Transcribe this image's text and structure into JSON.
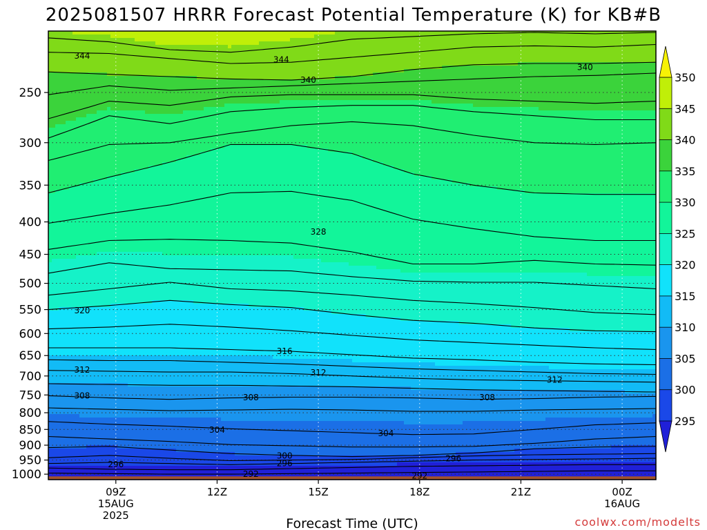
{
  "chart_data": {
    "type": "heatmap",
    "title": "2025081507 HRRR Forecast Potential Temperature (K) for KB#B",
    "xlabel": "Forecast Time (UTC)",
    "ylabel": "",
    "x_ticks": [
      {
        "lines": [
          "09Z",
          "15AUG",
          "2025"
        ],
        "hour": 9
      },
      {
        "lines": [
          "12Z"
        ],
        "hour": 12
      },
      {
        "lines": [
          "15Z"
        ],
        "hour": 15
      },
      {
        "lines": [
          "18Z"
        ],
        "hour": 18
      },
      {
        "lines": [
          "21Z"
        ],
        "hour": 21
      },
      {
        "lines": [
          "00Z",
          "16AUG"
        ],
        "hour": 24
      }
    ],
    "xlim_hours": [
      7,
      25
    ],
    "y_ticks": [
      "250",
      "300",
      "350",
      "400",
      "450",
      "500",
      "550",
      "600",
      "650",
      "700",
      "750",
      "800",
      "850",
      "900",
      "950",
      "1000"
    ],
    "y_values_hpa": [
      250,
      300,
      350,
      400,
      450,
      500,
      550,
      600,
      650,
      700,
      750,
      800,
      850,
      900,
      950,
      1000
    ],
    "ylim_hpa": [
      200,
      1020
    ],
    "y_scale": "log-pressure, inverted",
    "grid": "dotted",
    "colorbar": {
      "labels": [
        "350",
        "345",
        "340",
        "335",
        "330",
        "325",
        "320",
        "315",
        "310",
        "305",
        "300",
        "295"
      ],
      "bounds": [
        290,
        295,
        300,
        305,
        310,
        315,
        320,
        325,
        330,
        335,
        340,
        345,
        350,
        355
      ],
      "colors": [
        "#2020d8",
        "#1a48e8",
        "#1b6fe6",
        "#1a95ee",
        "#12bbf6",
        "#11e2fb",
        "#15f2c8",
        "#12f59a",
        "#20ee72",
        "#3bd33b",
        "#80da18",
        "#c0ef08",
        "#f7f205"
      ]
    },
    "contour_labels": [
      {
        "text": "344",
        "hour": 8.0,
        "hpa": 219
      },
      {
        "text": "344",
        "hour": 13.9,
        "hpa": 222
      },
      {
        "text": "340",
        "hour": 14.7,
        "hpa": 239
      },
      {
        "text": "340",
        "hour": 22.9,
        "hpa": 228
      },
      {
        "text": "328",
        "hour": 15.0,
        "hpa": 415
      },
      {
        "text": "320",
        "hour": 8.0,
        "hpa": 552
      },
      {
        "text": "316",
        "hour": 14.0,
        "hpa": 640
      },
      {
        "text": "312",
        "hour": 8.0,
        "hpa": 685
      },
      {
        "text": "312",
        "hour": 15.0,
        "hpa": 692
      },
      {
        "text": "312",
        "hour": 22.0,
        "hpa": 710
      },
      {
        "text": "308",
        "hour": 8.0,
        "hpa": 752
      },
      {
        "text": "308",
        "hour": 13.0,
        "hpa": 757
      },
      {
        "text": "308",
        "hour": 20.0,
        "hpa": 757
      },
      {
        "text": "304",
        "hour": 12.0,
        "hpa": 852
      },
      {
        "text": "304",
        "hour": 17.0,
        "hpa": 862
      },
      {
        "text": "300",
        "hour": 14.0,
        "hpa": 935
      },
      {
        "text": "296",
        "hour": 19.0,
        "hpa": 945
      },
      {
        "text": "296",
        "hour": 9.0,
        "hpa": 965
      },
      {
        "text": "296",
        "hour": 14.0,
        "hpa": 962
      },
      {
        "text": "292",
        "hour": 13.0,
        "hpa": 1000
      },
      {
        "text": "292",
        "hour": 18.0,
        "hpa": 1006
      }
    ],
    "contours": [
      {
        "level": 344,
        "hpa": [
          205,
          208,
          214,
          216,
          212,
          206,
          204,
          202,
          201,
          202,
          201
        ]
      },
      {
        "level": 342,
        "hpa": [
          216,
          217,
          221,
          225,
          224,
          220,
          216,
          212,
          211,
          212,
          210
        ]
      },
      {
        "level": 340,
        "hpa": [
          232,
          234,
          236,
          238,
          239,
          236,
          230,
          226,
          225,
          225,
          224
        ]
      },
      {
        "level": 338,
        "hpa": [
          252,
          244,
          248,
          246,
          244,
          242,
          240,
          238,
          236,
          235,
          233
        ]
      },
      {
        "level": 336,
        "hpa": [
          275,
          258,
          262,
          254,
          252,
          252,
          252,
          256,
          258,
          260,
          258
        ]
      },
      {
        "level": 334,
        "hpa": [
          295,
          272,
          280,
          268,
          264,
          262,
          262,
          268,
          272,
          276,
          276
        ]
      },
      {
        "level": 332,
        "hpa": [
          320,
          302,
          300,
          290,
          282,
          278,
          282,
          292,
          300,
          302,
          300
        ]
      },
      {
        "level": 330,
        "hpa": [
          360,
          340,
          322,
          302,
          302,
          312,
          336,
          350,
          360,
          362,
          362
        ]
      },
      {
        "level": 328,
        "hpa": [
          402,
          388,
          376,
          360,
          358,
          370,
          396,
          410,
          422,
          428,
          428
        ]
      },
      {
        "level": 326,
        "hpa": [
          442,
          428,
          426,
          428,
          432,
          446,
          466,
          466,
          460,
          466,
          468
        ]
      },
      {
        "level": 324,
        "hpa": [
          482,
          464,
          474,
          476,
          478,
          488,
          496,
          498,
          498,
          504,
          510
        ]
      },
      {
        "level": 322,
        "hpa": [
          522,
          510,
          498,
          510,
          514,
          522,
          532,
          538,
          546,
          556,
          560
        ]
      },
      {
        "level": 320,
        "hpa": [
          550,
          542,
          532,
          540,
          546,
          560,
          572,
          578,
          588,
          594,
          596
        ]
      },
      {
        "level": 318,
        "hpa": [
          590,
          586,
          580,
          586,
          594,
          604,
          614,
          620,
          626,
          632,
          636
        ]
      },
      {
        "level": 316,
        "hpa": [
          632,
          632,
          632,
          636,
          640,
          648,
          656,
          660,
          666,
          670,
          672
        ]
      },
      {
        "level": 314,
        "hpa": [
          660,
          662,
          662,
          666,
          670,
          676,
          682,
          686,
          690,
          694,
          696
        ]
      },
      {
        "level": 312,
        "hpa": [
          686,
          688,
          690,
          690,
          694,
          700,
          706,
          710,
          712,
          714,
          716
        ]
      },
      {
        "level": 310,
        "hpa": [
          720,
          722,
          724,
          724,
          726,
          728,
          732,
          736,
          738,
          740,
          742
        ]
      },
      {
        "level": 308,
        "hpa": [
          752,
          758,
          762,
          758,
          756,
          756,
          758,
          762,
          760,
          756,
          754
        ]
      },
      {
        "level": 306,
        "hpa": [
          786,
          790,
          794,
          792,
          790,
          792,
          796,
          796,
          792,
          790,
          788
        ]
      },
      {
        "level": 304,
        "hpa": [
          826,
          834,
          840,
          848,
          854,
          860,
          866,
          864,
          850,
          836,
          830
        ]
      },
      {
        "level": 302,
        "hpa": [
          872,
          880,
          888,
          898,
          902,
          906,
          906,
          904,
          894,
          880,
          872
        ]
      },
      {
        "level": 300,
        "hpa": [
          908,
          904,
          916,
          928,
          934,
          938,
          934,
          926,
          912,
          906,
          904
        ]
      },
      {
        "level": 298,
        "hpa": [
          942,
          934,
          944,
          952,
          950,
          948,
          942,
          936,
          932,
          930,
          928
        ]
      },
      {
        "level": 296,
        "hpa": [
          962,
          958,
          962,
          966,
          962,
          958,
          954,
          950,
          948,
          946,
          944
        ]
      },
      {
        "level": 294,
        "hpa": [
          978,
          982,
          984,
          984,
          980,
          976,
          972,
          970,
          968,
          966,
          966
        ]
      },
      {
        "level": 292,
        "hpa": [
          996,
          998,
          1000,
          1000,
          998,
          996,
          994,
          992,
          990,
          988,
          988
        ]
      }
    ],
    "contour_hours": [
      7,
      8.8,
      10.6,
      12.4,
      14.2,
      16.0,
      17.8,
      19.6,
      21.4,
      23.2,
      25
    ],
    "ground_hpa": 1008
  },
  "credit": "coolwx.com/modelts"
}
